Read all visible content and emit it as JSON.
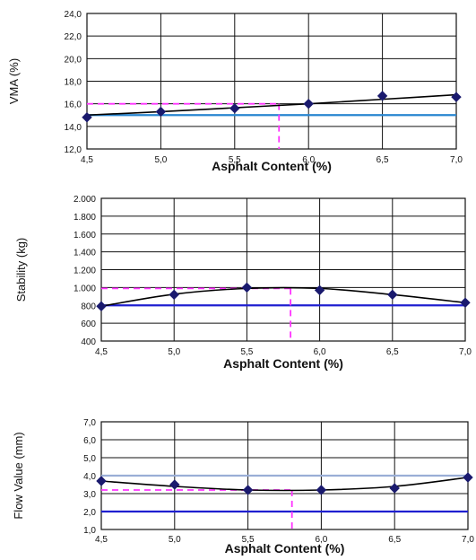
{
  "chart_data": [
    {
      "type": "line",
      "xlabel": "Asphalt Content (%)",
      "ylabel": "VMA (%)",
      "x": [
        4.5,
        5.0,
        5.5,
        6.0,
        6.5,
        7.0
      ],
      "x_tick_labels": [
        "4,5",
        "5,0",
        "5,5",
        "6,0",
        "6,5",
        "7,0"
      ],
      "y_tick_values": [
        12.0,
        14.0,
        16.0,
        18.0,
        20.0,
        22.0,
        24.0
      ],
      "y_tick_labels": [
        "12,0",
        "14,0",
        "16,0",
        "18,0",
        "20,0",
        "22,0",
        "24,0"
      ],
      "ylim": [
        12.0,
        24.0
      ],
      "xlim": [
        4.5,
        7.0
      ],
      "grid": true,
      "series": [
        {
          "values": [
            14.8,
            15.3,
            15.6,
            16.0,
            16.7,
            16.6
          ],
          "color": "#1a1a6e"
        }
      ],
      "trend_line": {
        "x": [
          4.5,
          5.0,
          5.5,
          6.0,
          6.5,
          7.0
        ],
        "y": [
          15.0,
          15.3,
          15.65,
          16.0,
          16.4,
          16.8
        ],
        "color": "#000000"
      },
      "reference_lines": [
        {
          "y": 15.0,
          "color": "#2a86d0"
        }
      ],
      "marker_lines": {
        "x": 5.8,
        "y": 16.0,
        "color": "#ff33ff"
      }
    },
    {
      "type": "line",
      "xlabel": "Asphalt Content (%)",
      "ylabel": "Stability (kg)",
      "x": [
        4.5,
        5.0,
        5.5,
        6.0,
        6.5,
        7.0
      ],
      "x_tick_labels": [
        "4,5",
        "5,0",
        "5,5",
        "6,0",
        "6,5",
        "7,0"
      ],
      "y_tick_values": [
        400,
        600,
        800,
        1000,
        1200,
        1400,
        1600,
        1800,
        2000
      ],
      "y_tick_labels": [
        "400",
        "600",
        "800",
        "1.000",
        "1.200",
        "1.400",
        "1.600",
        "1.800",
        "2.000"
      ],
      "ylim": [
        400,
        2000
      ],
      "xlim": [
        4.5,
        7.0
      ],
      "grid": true,
      "series": [
        {
          "values": [
            790,
            920,
            1000,
            970,
            920,
            830
          ],
          "color": "#1a1a6e"
        }
      ],
      "trend_line": {
        "x": [
          4.5,
          5.0,
          5.5,
          6.0,
          6.5,
          7.0
        ],
        "y": [
          790,
          925,
          990,
          990,
          920,
          830
        ],
        "color": "#000000"
      },
      "reference_lines": [
        {
          "y": 800,
          "color": "#1f1fd0"
        }
      ],
      "marker_lines": {
        "x": 5.8,
        "y": 990,
        "color": "#ff33ff"
      }
    },
    {
      "type": "line",
      "xlabel": "Asphalt Content (%)",
      "ylabel": "Flow Value (mm)",
      "x": [
        4.5,
        5.0,
        5.5,
        6.0,
        6.5,
        7.0
      ],
      "x_tick_labels": [
        "4,5",
        "5,0",
        "5,5",
        "6,0",
        "6,5",
        "7,0"
      ],
      "y_tick_values": [
        1.0,
        2.0,
        3.0,
        4.0,
        5.0,
        6.0,
        7.0
      ],
      "y_tick_labels": [
        "1,0",
        "2,0",
        "3,0",
        "4,0",
        "5,0",
        "6,0",
        "7,0"
      ],
      "ylim": [
        1.0,
        7.0
      ],
      "xlim": [
        4.5,
        7.0
      ],
      "grid": true,
      "series": [
        {
          "values": [
            3.7,
            3.5,
            3.2,
            3.2,
            3.3,
            3.9
          ],
          "color": "#1a1a6e"
        }
      ],
      "trend_line": {
        "x": [
          4.5,
          5.0,
          5.5,
          6.0,
          6.5,
          7.0
        ],
        "y": [
          3.7,
          3.4,
          3.2,
          3.2,
          3.4,
          3.9
        ],
        "color": "#000000"
      },
      "reference_lines": [
        {
          "y": 4.0,
          "color": "#9aaed6"
        },
        {
          "y": 2.0,
          "color": "#1f1fd0"
        }
      ],
      "marker_lines": {
        "x": 5.8,
        "y": 3.2,
        "color": "#ff33ff"
      }
    }
  ]
}
